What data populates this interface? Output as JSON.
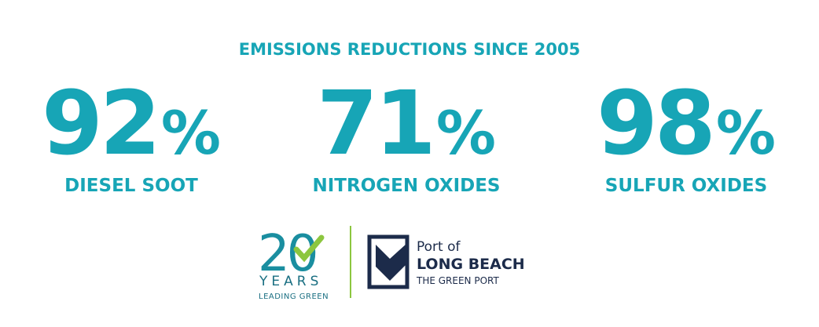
{
  "header": {
    "title": "EMISSIONS REDUCTIONS SINCE 2005"
  },
  "stats": [
    {
      "number": 92,
      "unit": "%",
      "label": "DIESEL SOOT"
    },
    {
      "number": 71,
      "unit": "%",
      "label": "NITROGEN OXIDES"
    },
    {
      "number": 98,
      "unit": "%",
      "label": "SULFUR OXIDES"
    }
  ],
  "logos": {
    "anniversary": {
      "number": "20",
      "word": "YEARS",
      "tagline": "LEADING GREEN"
    },
    "port": {
      "line1": "Port of",
      "line2": "LONG BEACH",
      "line3": "THE GREEN PORT"
    }
  }
}
